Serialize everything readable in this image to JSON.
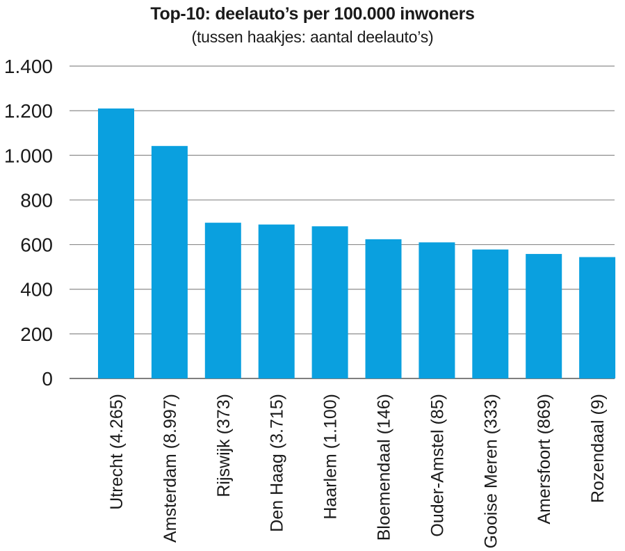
{
  "chart_data": {
    "type": "bar",
    "title": "Top-10: deelauto’s per 100.000 inwoners",
    "subtitle": "(tussen haakjes: aantal deelauto’s)",
    "categories": [
      "Utrecht (4.265)",
      "Amsterdam (8.997)",
      "Rijswijk (373)",
      "Den Haag (3.715)",
      "Haarlem (1.100)",
      "Bloemendaal (146)",
      "Ouder-Amstel (85)",
      "Gooise Meren (333)",
      "Amersfoort (869)",
      "Rozendaal (9)"
    ],
    "values": [
      1210,
      1042,
      698,
      690,
      682,
      624,
      610,
      578,
      558,
      544
    ],
    "ylim": [
      0,
      1400
    ],
    "yticks": [
      0,
      200,
      400,
      600,
      800,
      1000,
      1200,
      1400
    ],
    "ytick_labels": [
      "0",
      "200",
      "400",
      "600",
      "800",
      "1.000",
      "1.200",
      "1.400"
    ],
    "grid": true,
    "bar_color": "#0aa0df",
    "grid_color": "#8c8c8c"
  }
}
